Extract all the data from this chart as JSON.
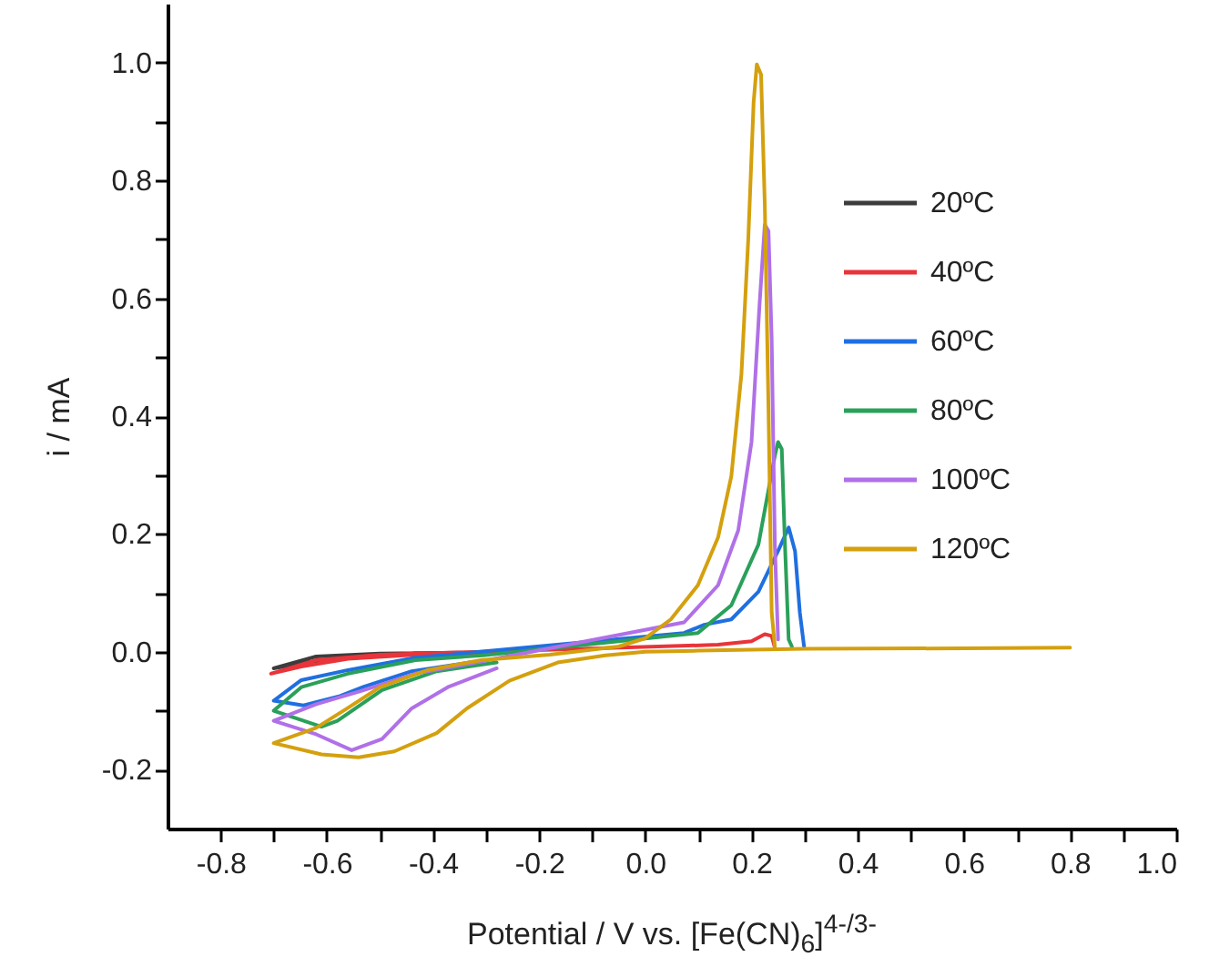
{
  "chart_data": {
    "type": "line",
    "xlabel": "Potential / V vs. [Fe(CN)$_{6}$]$^{4-/3-}$",
    "ylabel": "i / mA",
    "xlim": [
      -0.9,
      1.0
    ],
    "ylim": [
      -0.3,
      1.1
    ],
    "xticks": [
      {
        "value": -0.8,
        "label": "-0.8"
      },
      {
        "value": -0.7,
        "label": null
      },
      {
        "value": -0.6,
        "label": "-0.6"
      },
      {
        "value": -0.5,
        "label": null
      },
      {
        "value": -0.4,
        "label": "-0.4"
      },
      {
        "value": -0.3,
        "label": null
      },
      {
        "value": -0.2,
        "label": "-0.2"
      },
      {
        "value": -0.1,
        "label": null
      },
      {
        "value": 0,
        "label": "0.0"
      },
      {
        "value": 0.1,
        "label": null
      },
      {
        "value": 0.2,
        "label": "0.2"
      },
      {
        "value": 0.3,
        "label": null
      },
      {
        "value": 0.4,
        "label": "0.4"
      },
      {
        "value": 0.5,
        "label": null
      },
      {
        "value": 0.6,
        "label": "0.6"
      },
      {
        "value": 0.7,
        "label": null
      },
      {
        "value": 0.8,
        "label": "0.8"
      },
      {
        "value": 0.9,
        "label": null
      },
      {
        "value": 1.0,
        "label": "1.0"
      }
    ],
    "yticks": [
      {
        "value": -0.2,
        "label": "-0.2"
      },
      {
        "value": -0.1,
        "label": null
      },
      {
        "value": 0,
        "label": "0.0"
      },
      {
        "value": 0.1,
        "label": null
      },
      {
        "value": 0.2,
        "label": "0.2"
      },
      {
        "value": 0.3,
        "label": null
      },
      {
        "value": 0.4,
        "label": "0.4"
      },
      {
        "value": 0.5,
        "label": null
      },
      {
        "value": 0.6,
        "label": "0.6"
      },
      {
        "value": 0.7,
        "label": null
      },
      {
        "value": 0.8,
        "label": "0.8"
      },
      {
        "value": 0.9,
        "label": null
      },
      {
        "value": 1.0,
        "label": "1.0"
      }
    ],
    "grid": false,
    "legend": "right",
    "line_style": "solid",
    "series": [
      {
        "name": "20ºC",
        "color": "#3c3c3c",
        "x": [
          -0.3,
          -0.433,
          -0.56,
          -0.648,
          -0.7,
          -0.62,
          -0.5,
          -0.3
        ],
        "values": [
          -0.002,
          -0.002,
          -0.008,
          -0.02,
          -0.028,
          -0.008,
          -0.003,
          -0.001
        ]
      },
      {
        "name": "40ºC",
        "color": "#e8343a",
        "x": [
          -0.3,
          -0.433,
          -0.56,
          -0.648,
          -0.705,
          -0.62,
          -0.5,
          0.137,
          0.2,
          0.225,
          0.238,
          0.244
        ],
        "values": [
          -0.003,
          -0.005,
          -0.012,
          -0.025,
          -0.037,
          -0.014,
          -0.005,
          0.012,
          0.018,
          0.03,
          0.027,
          0.007
        ]
      },
      {
        "name": "60ºC",
        "color": "#1f6fe0",
        "x": [
          -0.33,
          -0.44,
          -0.53,
          -0.575,
          -0.644,
          -0.7,
          -0.648,
          -0.56,
          -0.433,
          0.073,
          0.111,
          0.162,
          0.213,
          0.25,
          0.27,
          0.282,
          0.291,
          0.299
        ],
        "values": [
          -0.018,
          -0.033,
          -0.059,
          -0.075,
          -0.091,
          -0.083,
          -0.048,
          -0.031,
          -0.01,
          0.032,
          0.046,
          0.055,
          0.102,
          0.171,
          0.211,
          0.171,
          0.067,
          0.009
        ]
      },
      {
        "name": "80ºC",
        "color": "#2aa05a",
        "x": [
          -0.28,
          -0.393,
          -0.496,
          -0.58,
          -0.61,
          -0.7,
          -0.648,
          -0.56,
          -0.433,
          -0.306,
          0.099,
          0.162,
          0.213,
          0.244,
          0.25,
          0.257,
          0.263,
          0.27,
          0.276
        ],
        "values": [
          -0.018,
          -0.033,
          -0.065,
          -0.117,
          -0.127,
          -0.1,
          -0.06,
          -0.037,
          -0.014,
          -0.006,
          0.032,
          0.079,
          0.182,
          0.333,
          0.356,
          0.344,
          0.182,
          0.021,
          0.009
        ]
      },
      {
        "name": "100ºC",
        "color": "#b070e8",
        "x": [
          -0.28,
          -0.37,
          -0.44,
          -0.496,
          -0.553,
          -0.62,
          -0.7,
          -0.62,
          -0.534,
          -0.433,
          -0.33,
          0.073,
          0.137,
          0.175,
          0.2,
          0.215,
          0.225,
          0.232,
          0.238,
          0.244,
          0.25
        ],
        "values": [
          -0.028,
          -0.059,
          -0.096,
          -0.148,
          -0.167,
          -0.14,
          -0.117,
          -0.089,
          -0.066,
          -0.037,
          -0.02,
          0.05,
          0.113,
          0.206,
          0.356,
          0.587,
          0.725,
          0.714,
          0.53,
          0.18,
          0.021
        ]
      },
      {
        "name": "120ºC",
        "color": "#d4a00e",
        "x": [
          0.8,
          0.6,
          0.3,
          0.1,
          0,
          -0.075,
          -0.165,
          -0.256,
          -0.336,
          -0.393,
          -0.473,
          -0.54,
          -0.61,
          -0.7,
          -0.62,
          -0.56,
          -0.5,
          -0.41,
          -0.31,
          -0.18,
          -0.05,
          0,
          0.048,
          0.099,
          0.137,
          0.162,
          0.181,
          0.194,
          0.204,
          0.21,
          0.218,
          0.225,
          0.232,
          0.238,
          0.244
        ],
        "values": [
          0.007,
          0.006,
          0.005,
          0.002,
          0,
          -0.006,
          -0.018,
          -0.049,
          -0.096,
          -0.138,
          -0.169,
          -0.179,
          -0.174,
          -0.155,
          -0.129,
          -0.095,
          -0.06,
          -0.031,
          -0.014,
          -0.005,
          0.009,
          0.023,
          0.055,
          0.113,
          0.194,
          0.298,
          0.471,
          0.702,
          0.933,
          0.997,
          0.98,
          0.76,
          0.413,
          0.067,
          0.009
        ]
      }
    ]
  }
}
